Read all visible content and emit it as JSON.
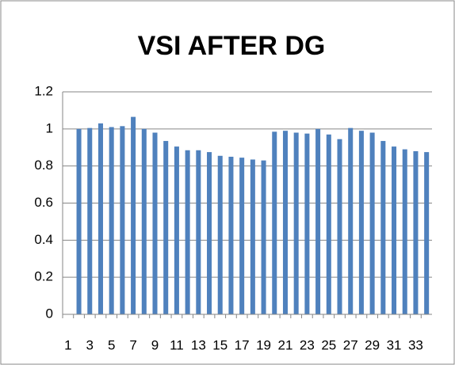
{
  "chart_data": {
    "type": "bar",
    "title": "VSI AFTER DG",
    "categories": [
      1,
      null,
      3,
      null,
      5,
      null,
      7,
      null,
      9,
      null,
      11,
      null,
      13,
      null,
      15,
      null,
      17,
      null,
      19,
      null,
      21,
      null,
      23,
      null,
      25,
      null,
      27,
      null,
      29,
      null,
      31,
      null,
      33,
      null
    ],
    "values": [
      null,
      1.0,
      1.005,
      1.03,
      1.01,
      1.015,
      1.065,
      1.0,
      0.98,
      0.935,
      0.905,
      0.885,
      0.885,
      0.875,
      0.855,
      0.85,
      0.845,
      0.835,
      0.83,
      0.985,
      0.99,
      0.98,
      0.975,
      1.0,
      0.97,
      0.945,
      1.005,
      0.99,
      0.98,
      0.935,
      0.905,
      0.89,
      0.88,
      0.875
    ],
    "color": "#4f81bd",
    "ylim": [
      0,
      1.2
    ],
    "yticks": [
      0,
      0.2,
      0.4,
      0.6,
      0.8,
      1,
      1.2
    ],
    "grid": true
  }
}
